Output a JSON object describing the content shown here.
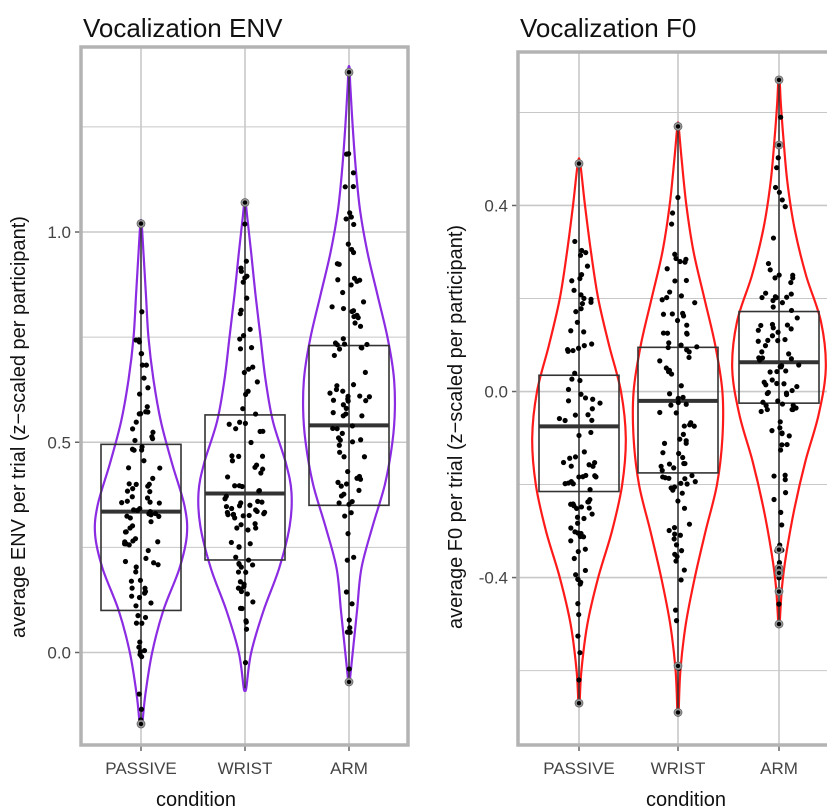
{
  "colors": {
    "env_violin": "#8B2BE2",
    "f0_violin": "#FF1A1A",
    "gridline": "#C8C8C8",
    "panel_border": "#B3B3B3",
    "point": "#000000",
    "box": "#333333"
  },
  "chart_data": [
    {
      "type": "violin-box",
      "title": "Vocalization ENV",
      "xlabel": "condition",
      "ylabel": "average ENV per trial (z−scaled per participant)",
      "categories": [
        "PASSIVE",
        "WRIST",
        "ARM"
      ],
      "y_ticks": [
        0.0,
        0.5,
        1.0
      ],
      "y_tick_labels": [
        "0.0",
        "0.5",
        "1.0"
      ],
      "ylim": [
        -0.22,
        1.44
      ],
      "grid": true,
      "violin_color": "#8B2BE2",
      "groups": [
        {
          "name": "PASSIVE",
          "min": -0.17,
          "q1": 0.1,
          "median": 0.335,
          "q3": 0.495,
          "max": 1.02,
          "density": [
            [
              -0.17,
              0.02
            ],
            [
              -0.1,
              0.07
            ],
            [
              0.0,
              0.18
            ],
            [
              0.1,
              0.36
            ],
            [
              0.2,
              0.62
            ],
            [
              0.28,
              0.74
            ],
            [
              0.35,
              0.7
            ],
            [
              0.45,
              0.5
            ],
            [
              0.55,
              0.32
            ],
            [
              0.65,
              0.2
            ],
            [
              0.75,
              0.12
            ],
            [
              0.85,
              0.08
            ],
            [
              0.95,
              0.04
            ],
            [
              1.02,
              0.01
            ]
          ]
        },
        {
          "name": "WRIST",
          "min": -0.085,
          "q1": 0.22,
          "median": 0.378,
          "q3": 0.565,
          "max": 1.07,
          "density": [
            [
              -0.085,
              0.02
            ],
            [
              0.0,
              0.1
            ],
            [
              0.1,
              0.3
            ],
            [
              0.2,
              0.55
            ],
            [
              0.3,
              0.72
            ],
            [
              0.38,
              0.75
            ],
            [
              0.45,
              0.66
            ],
            [
              0.55,
              0.45
            ],
            [
              0.65,
              0.33
            ],
            [
              0.75,
              0.25
            ],
            [
              0.85,
              0.17
            ],
            [
              0.95,
              0.1
            ],
            [
              1.03,
              0.04
            ],
            [
              1.07,
              0.01
            ]
          ]
        },
        {
          "name": "ARM",
          "min": -0.07,
          "q1": 0.35,
          "median": 0.54,
          "q3": 0.73,
          "max": 1.39,
          "density": [
            [
              -0.07,
              0.01
            ],
            [
              0.0,
              0.06
            ],
            [
              0.1,
              0.13
            ],
            [
              0.2,
              0.2
            ],
            [
              0.3,
              0.38
            ],
            [
              0.4,
              0.58
            ],
            [
              0.5,
              0.7
            ],
            [
              0.58,
              0.74
            ],
            [
              0.66,
              0.72
            ],
            [
              0.75,
              0.62
            ],
            [
              0.85,
              0.46
            ],
            [
              0.95,
              0.3
            ],
            [
              1.05,
              0.18
            ],
            [
              1.15,
              0.11
            ],
            [
              1.25,
              0.06
            ],
            [
              1.35,
              0.02
            ],
            [
              1.39,
              0.01
            ]
          ]
        }
      ],
      "outliers": [
        {
          "group": "PASSIVE",
          "y": 1.02
        },
        {
          "group": "PASSIVE",
          "y": -0.17
        },
        {
          "group": "WRIST",
          "y": 1.07
        },
        {
          "group": "ARM",
          "y": 1.38
        },
        {
          "group": "ARM",
          "y": -0.07
        }
      ]
    },
    {
      "type": "violin-box",
      "title": "Vocalization F0",
      "xlabel": "condition",
      "ylabel": "average F0 per trial (z−scaled per participant)",
      "categories": [
        "PASSIVE",
        "WRIST",
        "ARM"
      ],
      "y_ticks": [
        -0.4,
        0.0,
        0.4
      ],
      "y_tick_labels": [
        "-0.4",
        "0.0",
        "0.4"
      ],
      "ylim": [
        -0.76,
        0.73
      ],
      "grid": true,
      "violin_color": "#FF1A1A",
      "groups": [
        {
          "name": "PASSIVE",
          "min": -0.67,
          "q1": -0.215,
          "median": -0.075,
          "q3": 0.035,
          "max": 0.49,
          "density": [
            [
              -0.67,
              0.01
            ],
            [
              -0.6,
              0.04
            ],
            [
              -0.5,
              0.14
            ],
            [
              -0.4,
              0.32
            ],
            [
              -0.3,
              0.55
            ],
            [
              -0.2,
              0.72
            ],
            [
              -0.1,
              0.78
            ],
            [
              0.0,
              0.7
            ],
            [
              0.1,
              0.5
            ],
            [
              0.2,
              0.32
            ],
            [
              0.3,
              0.2
            ],
            [
              0.4,
              0.1
            ],
            [
              0.49,
              0.02
            ]
          ]
        },
        {
          "name": "WRIST",
          "min": -0.69,
          "q1": -0.175,
          "median": -0.02,
          "q3": 0.095,
          "max": 0.57,
          "density": [
            [
              -0.69,
              0.01
            ],
            [
              -0.6,
              0.04
            ],
            [
              -0.5,
              0.13
            ],
            [
              -0.4,
              0.28
            ],
            [
              -0.3,
              0.46
            ],
            [
              -0.2,
              0.65
            ],
            [
              -0.1,
              0.74
            ],
            [
              0.0,
              0.74
            ],
            [
              0.1,
              0.62
            ],
            [
              0.2,
              0.44
            ],
            [
              0.3,
              0.26
            ],
            [
              0.4,
              0.14
            ],
            [
              0.5,
              0.06
            ],
            [
              0.57,
              0.01
            ]
          ]
        },
        {
          "name": "ARM",
          "min": -0.5,
          "q1": -0.025,
          "median": 0.063,
          "q3": 0.172,
          "max": 0.67,
          "density": [
            [
              -0.5,
              0.01
            ],
            [
              -0.42,
              0.05
            ],
            [
              -0.35,
              0.12
            ],
            [
              -0.25,
              0.26
            ],
            [
              -0.15,
              0.44
            ],
            [
              -0.05,
              0.66
            ],
            [
              0.05,
              0.78
            ],
            [
              0.15,
              0.7
            ],
            [
              0.25,
              0.45
            ],
            [
              0.35,
              0.26
            ],
            [
              0.45,
              0.14
            ],
            [
              0.55,
              0.07
            ],
            [
              0.62,
              0.03
            ],
            [
              0.67,
              0.01
            ]
          ]
        }
      ],
      "outliers": [
        {
          "group": "PASSIVE",
          "y": 0.49
        },
        {
          "group": "PASSIVE",
          "y": -0.67
        },
        {
          "group": "WRIST",
          "y": 0.57
        },
        {
          "group": "WRIST",
          "y": -0.69
        },
        {
          "group": "WRIST",
          "y": -0.59
        },
        {
          "group": "ARM",
          "y": 0.67
        },
        {
          "group": "ARM",
          "y": 0.53
        },
        {
          "group": "ARM",
          "y": -0.34
        },
        {
          "group": "ARM",
          "y": -0.38
        },
        {
          "group": "ARM",
          "y": -0.39
        },
        {
          "group": "ARM",
          "y": -0.43
        },
        {
          "group": "ARM",
          "y": -0.5
        }
      ]
    }
  ]
}
